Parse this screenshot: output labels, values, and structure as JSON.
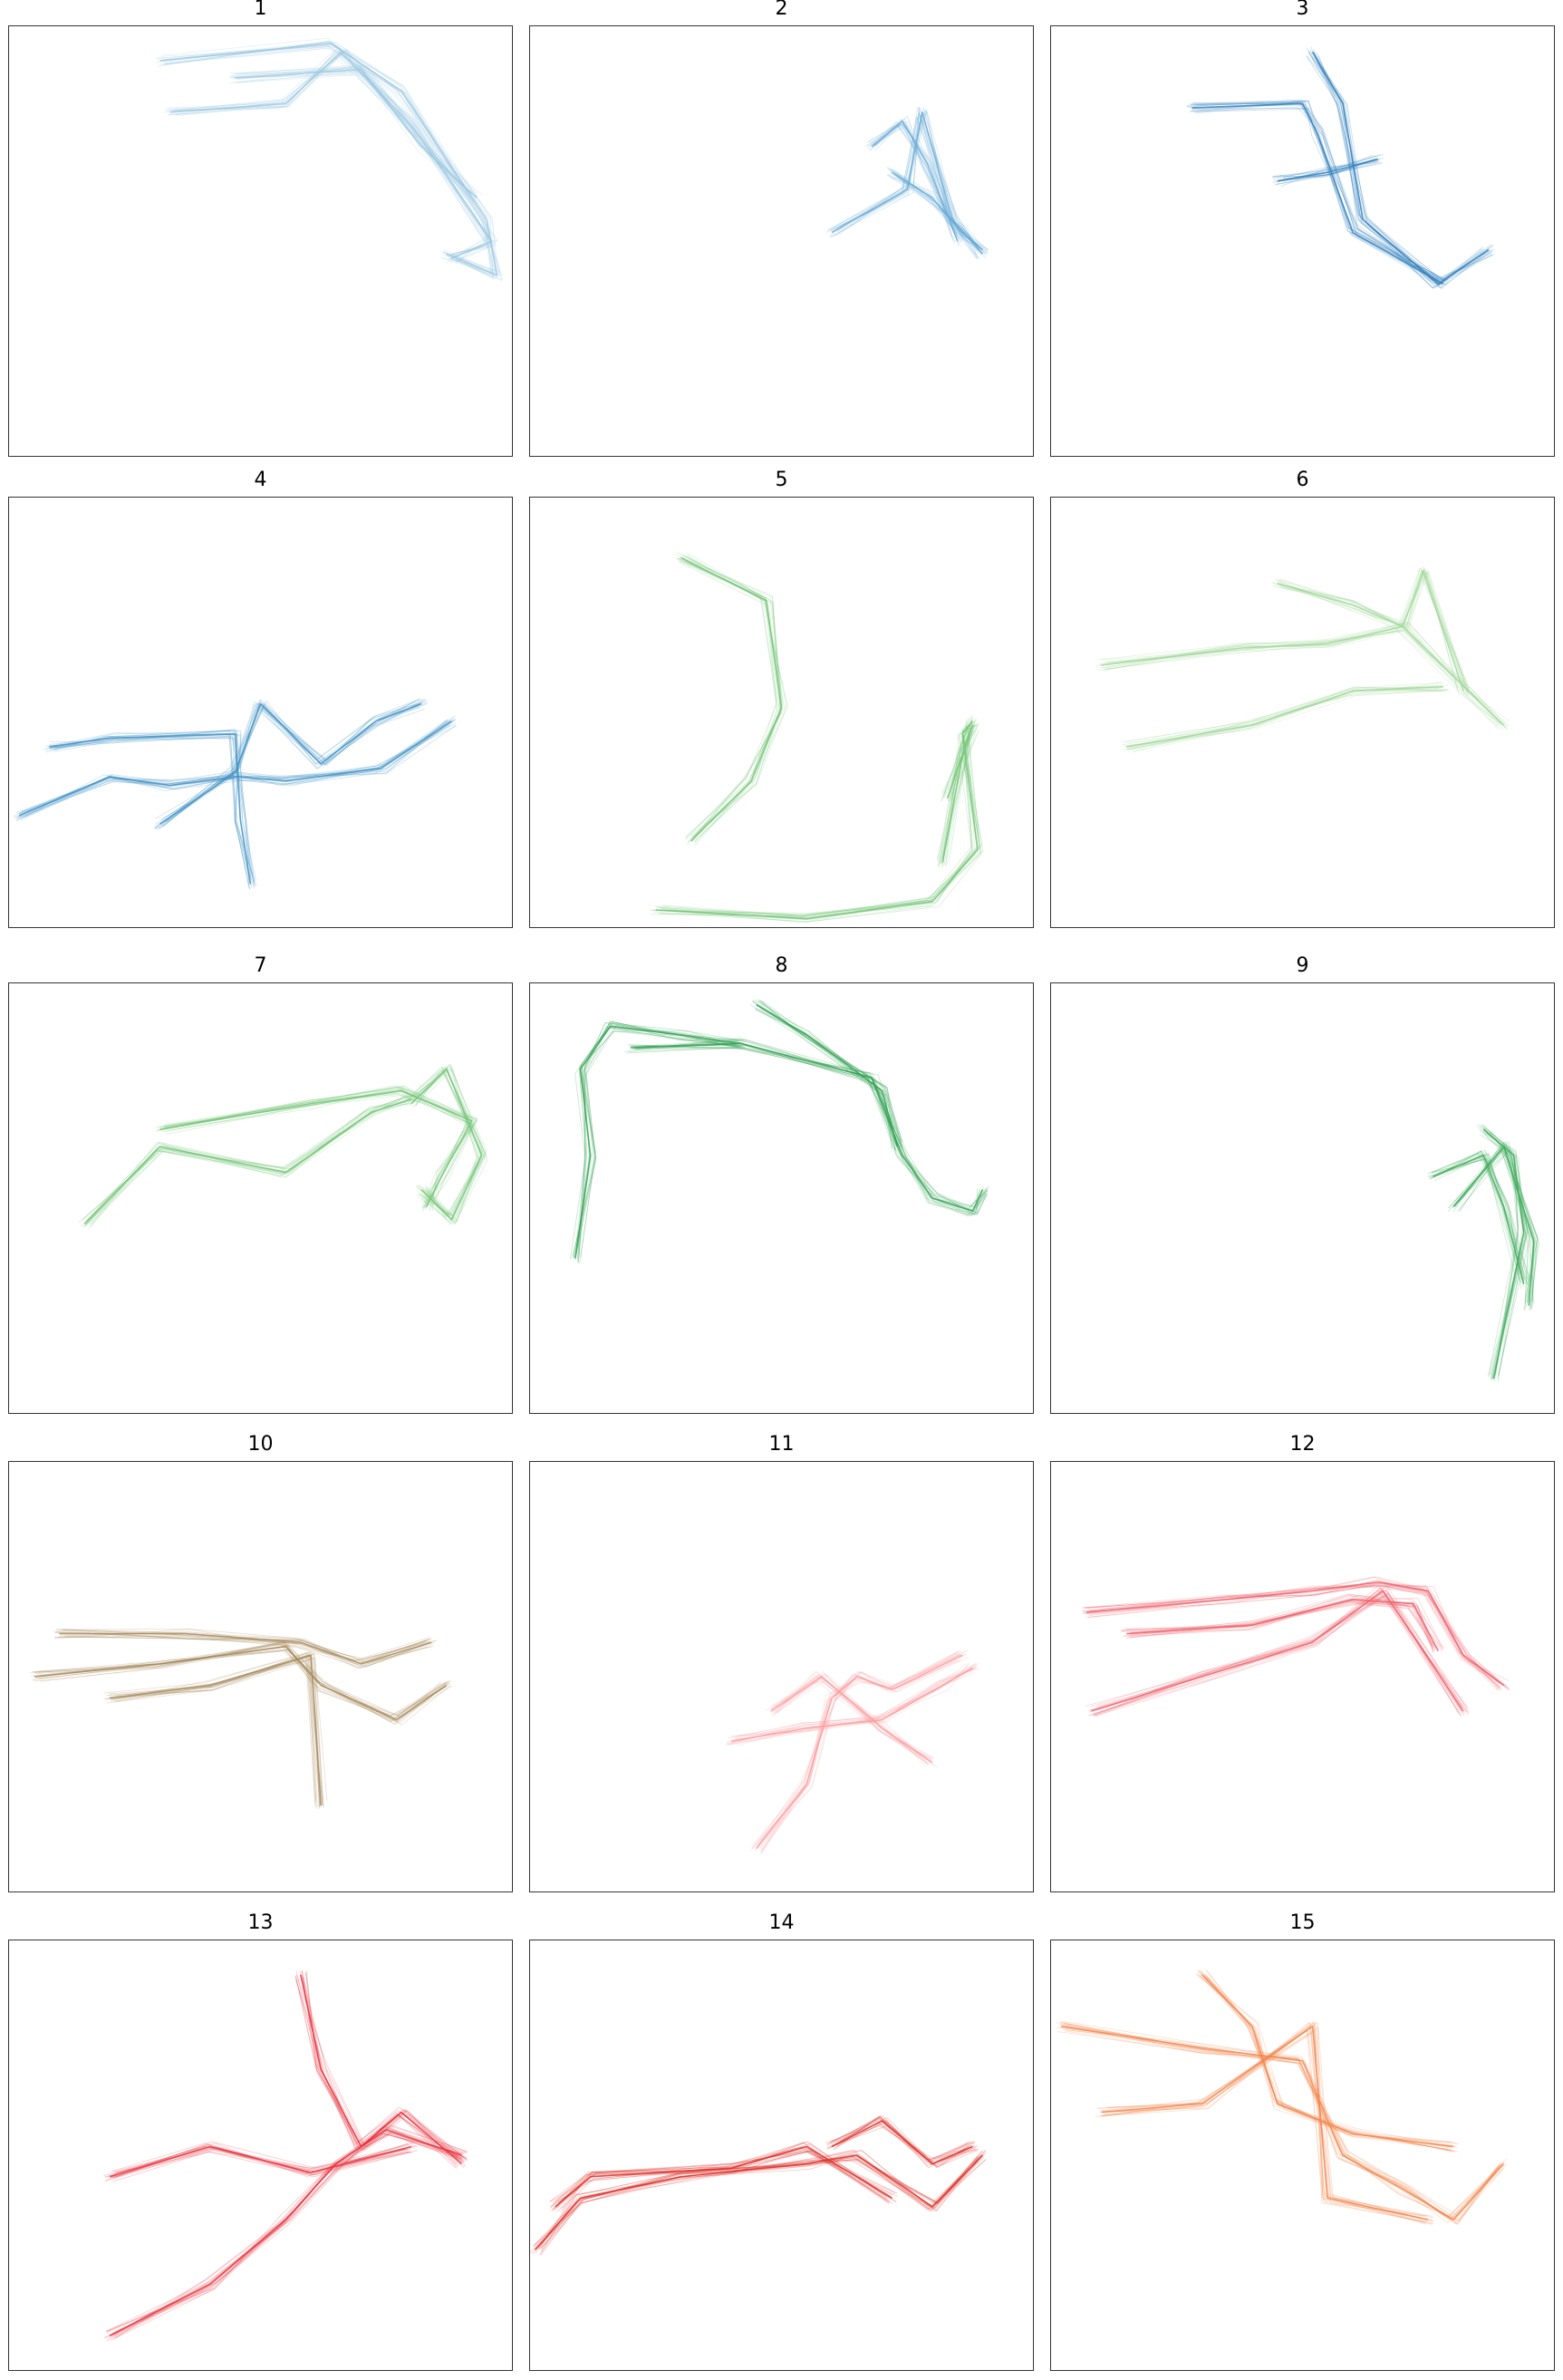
{
  "figure": {
    "type": "small-multiples",
    "panels": [
      {
        "title": "1",
        "color": "#9ecae1"
      },
      {
        "title": "2",
        "color": "#6baed6"
      },
      {
        "title": "3",
        "color": "#3182bd"
      },
      {
        "title": "4",
        "color": "#4292c6"
      },
      {
        "title": "5",
        "color": "#74c476"
      },
      {
        "title": "6",
        "color": "#a1d99b"
      },
      {
        "title": "7",
        "color": "#74c476"
      },
      {
        "title": "8",
        "color": "#31a354"
      },
      {
        "title": "9",
        "color": "#41ab5d"
      },
      {
        "title": "10",
        "color": "#a68a5b"
      },
      {
        "title": "11",
        "color": "#fc9fa0"
      },
      {
        "title": "12",
        "color": "#f0606a"
      },
      {
        "title": "13",
        "color": "#e8333e"
      },
      {
        "title": "14",
        "color": "#de2d26"
      },
      {
        "title": "15",
        "color": "#f5874f"
      }
    ]
  },
  "chart_data": [
    {
      "type": "line",
      "title": "1",
      "color": "#9ecae1",
      "series": [
        {
          "x": [
            0.3,
            0.64,
            0.78,
            0.95,
            0.97,
            0.87
          ],
          "y": [
            0.92,
            0.96,
            0.85,
            0.55,
            0.42,
            0.47
          ]
        },
        {
          "x": [
            0.45,
            0.7,
            0.82,
            0.93
          ],
          "y": [
            0.88,
            0.9,
            0.72,
            0.6
          ]
        },
        {
          "x": [
            0.32,
            0.55,
            0.66,
            0.8,
            0.96,
            0.88
          ],
          "y": [
            0.8,
            0.82,
            0.94,
            0.77,
            0.5,
            0.46
          ]
        }
      ]
    },
    {
      "type": "line",
      "title": "2",
      "color": "#6baed6",
      "series": [
        {
          "x": [
            0.6,
            0.75,
            0.78,
            0.84,
            0.9
          ],
          "y": [
            0.52,
            0.62,
            0.8,
            0.55,
            0.47
          ]
        },
        {
          "x": [
            0.72,
            0.8,
            0.86,
            0.9
          ],
          "y": [
            0.66,
            0.6,
            0.52,
            0.48
          ]
        },
        {
          "x": [
            0.68,
            0.74,
            0.79,
            0.85
          ],
          "y": [
            0.72,
            0.78,
            0.68,
            0.5
          ]
        }
      ]
    },
    {
      "type": "line",
      "title": "3",
      "color": "#3182bd",
      "series": [
        {
          "x": [
            0.52,
            0.58,
            0.62,
            0.77,
            0.87
          ],
          "y": [
            0.94,
            0.82,
            0.55,
            0.4,
            0.48
          ]
        },
        {
          "x": [
            0.45,
            0.55,
            0.65
          ],
          "y": [
            0.64,
            0.66,
            0.69
          ]
        },
        {
          "x": [
            0.28,
            0.5,
            0.53,
            0.6,
            0.78
          ],
          "y": [
            0.81,
            0.82,
            0.75,
            0.52,
            0.4
          ]
        }
      ]
    },
    {
      "type": "line",
      "title": "4",
      "color": "#4292c6",
      "series": [
        {
          "x": [
            0.02,
            0.2,
            0.32,
            0.45,
            0.55,
            0.74,
            0.88
          ],
          "y": [
            0.26,
            0.35,
            0.33,
            0.35,
            0.34,
            0.37,
            0.48
          ]
        },
        {
          "x": [
            0.3,
            0.45,
            0.5,
            0.62,
            0.73,
            0.82
          ],
          "y": [
            0.24,
            0.36,
            0.52,
            0.38,
            0.48,
            0.52
          ]
        },
        {
          "x": [
            0.08,
            0.2,
            0.45,
            0.46,
            0.48
          ],
          "y": [
            0.42,
            0.44,
            0.45,
            0.25,
            0.1
          ]
        }
      ]
    },
    {
      "type": "line",
      "title": "5",
      "color": "#74c476",
      "series": [
        {
          "x": [
            0.25,
            0.55,
            0.8,
            0.89,
            0.86,
            0.88
          ],
          "y": [
            0.04,
            0.02,
            0.06,
            0.18,
            0.45,
            0.48
          ]
        },
        {
          "x": [
            0.82,
            0.86,
            0.88,
            0.83
          ],
          "y": [
            0.15,
            0.4,
            0.47,
            0.3
          ]
        },
        {
          "x": [
            0.32,
            0.44,
            0.5,
            0.47,
            0.3
          ],
          "y": [
            0.2,
            0.34,
            0.51,
            0.76,
            0.86
          ]
        }
      ]
    },
    {
      "type": "line",
      "title": "6",
      "color": "#a1d99b",
      "series": [
        {
          "x": [
            0.1,
            0.38,
            0.55,
            0.7,
            0.83,
            0.9
          ],
          "y": [
            0.61,
            0.65,
            0.66,
            0.7,
            0.55,
            0.47
          ]
        },
        {
          "x": [
            0.45,
            0.6,
            0.7,
            0.74,
            0.82
          ],
          "y": [
            0.8,
            0.75,
            0.7,
            0.83,
            0.55
          ]
        },
        {
          "x": [
            0.15,
            0.4,
            0.6,
            0.78
          ],
          "y": [
            0.42,
            0.47,
            0.55,
            0.56
          ]
        }
      ]
    },
    {
      "type": "line",
      "title": "7",
      "color": "#74c476",
      "series": [
        {
          "x": [
            0.3,
            0.6,
            0.78,
            0.92,
            0.86,
            0.83
          ],
          "y": [
            0.66,
            0.72,
            0.75,
            0.68,
            0.55,
            0.48
          ]
        },
        {
          "x": [
            0.8,
            0.87,
            0.94,
            0.88,
            0.82
          ],
          "y": [
            0.72,
            0.8,
            0.6,
            0.45,
            0.52
          ]
        },
        {
          "x": [
            0.15,
            0.3,
            0.55,
            0.72,
            0.8
          ],
          "y": [
            0.44,
            0.62,
            0.56,
            0.7,
            0.73
          ]
        }
      ]
    },
    {
      "type": "line",
      "title": "8",
      "color": "#31a354",
      "series": [
        {
          "x": [
            0.2,
            0.42,
            0.68,
            0.74,
            0.8,
            0.88,
            0.9
          ],
          "y": [
            0.85,
            0.86,
            0.78,
            0.6,
            0.5,
            0.47,
            0.52
          ]
        },
        {
          "x": [
            0.45,
            0.55,
            0.7,
            0.73
          ],
          "y": [
            0.95,
            0.88,
            0.75,
            0.62
          ]
        },
        {
          "x": [
            0.09,
            0.12,
            0.1,
            0.16,
            0.3,
            0.42
          ],
          "y": [
            0.36,
            0.6,
            0.8,
            0.9,
            0.88,
            0.86
          ]
        }
      ]
    },
    {
      "type": "line",
      "title": "9",
      "color": "#41ab5d",
      "series": [
        {
          "x": [
            0.76,
            0.86,
            0.9,
            0.94
          ],
          "y": [
            0.55,
            0.6,
            0.48,
            0.3
          ]
        },
        {
          "x": [
            0.86,
            0.92,
            0.94,
            0.88
          ],
          "y": [
            0.66,
            0.6,
            0.42,
            0.08
          ]
        },
        {
          "x": [
            0.8,
            0.9,
            0.96,
            0.95
          ],
          "y": [
            0.48,
            0.62,
            0.4,
            0.25
          ]
        }
      ]
    },
    {
      "type": "line",
      "title": "10",
      "color": "#a68a5b",
      "series": [
        {
          "x": [
            0.05,
            0.3,
            0.55,
            0.62,
            0.77,
            0.87
          ],
          "y": [
            0.5,
            0.53,
            0.57,
            0.48,
            0.4,
            0.48
          ]
        },
        {
          "x": [
            0.1,
            0.35,
            0.58,
            0.7,
            0.84
          ],
          "y": [
            0.6,
            0.6,
            0.58,
            0.53,
            0.58
          ]
        },
        {
          "x": [
            0.2,
            0.4,
            0.6,
            0.62
          ],
          "y": [
            0.45,
            0.48,
            0.55,
            0.2
          ]
        }
      ]
    },
    {
      "type": "line",
      "title": "11",
      "color": "#fc9fa0",
      "series": [
        {
          "x": [
            0.45,
            0.55,
            0.6,
            0.65,
            0.72,
            0.86
          ],
          "y": [
            0.1,
            0.25,
            0.45,
            0.5,
            0.47,
            0.55
          ]
        },
        {
          "x": [
            0.4,
            0.55,
            0.7,
            0.82,
            0.88
          ],
          "y": [
            0.35,
            0.38,
            0.4,
            0.48,
            0.52
          ]
        },
        {
          "x": [
            0.48,
            0.58,
            0.7,
            0.8
          ],
          "y": [
            0.42,
            0.5,
            0.38,
            0.3
          ]
        }
      ]
    },
    {
      "type": "line",
      "title": "12",
      "color": "#f0606a",
      "series": [
        {
          "x": [
            0.07,
            0.35,
            0.52,
            0.65,
            0.75,
            0.82,
            0.9
          ],
          "y": [
            0.65,
            0.68,
            0.7,
            0.72,
            0.7,
            0.55,
            0.48
          ]
        },
        {
          "x": [
            0.15,
            0.4,
            0.6,
            0.72,
            0.77
          ],
          "y": [
            0.6,
            0.62,
            0.68,
            0.67,
            0.56
          ]
        },
        {
          "x": [
            0.08,
            0.3,
            0.52,
            0.66,
            0.82
          ],
          "y": [
            0.42,
            0.5,
            0.58,
            0.7,
            0.42
          ]
        }
      ]
    },
    {
      "type": "line",
      "title": "13",
      "color": "#e8333e",
      "series": [
        {
          "x": [
            0.2,
            0.4,
            0.55,
            0.65,
            0.75,
            0.9
          ],
          "y": [
            0.08,
            0.2,
            0.35,
            0.48,
            0.56,
            0.5
          ]
        },
        {
          "x": [
            0.58,
            0.62,
            0.7,
            0.78,
            0.9
          ],
          "y": [
            0.92,
            0.7,
            0.52,
            0.6,
            0.48
          ]
        },
        {
          "x": [
            0.2,
            0.4,
            0.6,
            0.8
          ],
          "y": [
            0.45,
            0.52,
            0.46,
            0.52
          ]
        }
      ]
    },
    {
      "type": "line",
      "title": "14",
      "color": "#de2d26",
      "series": [
        {
          "x": [
            0.01,
            0.1,
            0.3,
            0.55,
            0.65,
            0.8,
            0.9
          ],
          "y": [
            0.28,
            0.4,
            0.45,
            0.48,
            0.5,
            0.38,
            0.5
          ]
        },
        {
          "x": [
            0.05,
            0.12,
            0.4,
            0.55,
            0.72
          ],
          "y": [
            0.38,
            0.45,
            0.47,
            0.52,
            0.4
          ]
        },
        {
          "x": [
            0.6,
            0.7,
            0.8,
            0.88
          ],
          "y": [
            0.52,
            0.58,
            0.48,
            0.52
          ]
        }
      ]
    },
    {
      "type": "line",
      "title": "15",
      "color": "#f5874f",
      "series": [
        {
          "x": [
            0.02,
            0.3,
            0.5,
            0.58,
            0.7,
            0.8,
            0.9
          ],
          "y": [
            0.8,
            0.75,
            0.72,
            0.5,
            0.42,
            0.35,
            0.48
          ]
        },
        {
          "x": [
            0.3,
            0.4,
            0.45,
            0.6,
            0.8
          ],
          "y": [
            0.92,
            0.8,
            0.62,
            0.55,
            0.52
          ]
        },
        {
          "x": [
            0.1,
            0.3,
            0.52,
            0.55,
            0.75
          ],
          "y": [
            0.6,
            0.62,
            0.8,
            0.4,
            0.35
          ]
        }
      ]
    }
  ]
}
